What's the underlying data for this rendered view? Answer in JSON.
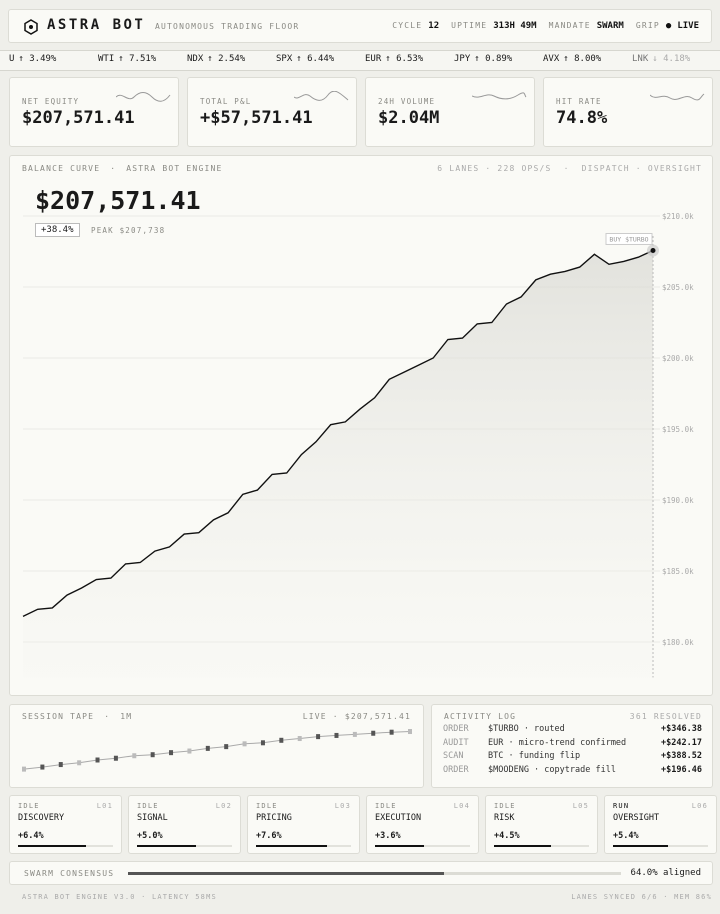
{
  "header": {
    "brand": "ASTRA BOT",
    "tagline": "AUTONOMOUS TRADING FLOOR",
    "cycle_label": "CYCLE",
    "cycle": "12",
    "uptime_label": "UPTIME",
    "uptime": "313H 49M",
    "mandate_label": "MANDATE",
    "mandate": "SWARM",
    "grip_label": "GRIP",
    "grip": "LIVE"
  },
  "ticker": [
    {
      "symbol": "U",
      "move": "↑ 3.49%"
    },
    {
      "symbol": "WTI",
      "move": "↑ 7.51%"
    },
    {
      "symbol": "NDX",
      "move": "↑ 2.54%"
    },
    {
      "symbol": "SPX",
      "move": "↑ 6.44%"
    },
    {
      "symbol": "EUR",
      "move": "↑ 6.53%"
    },
    {
      "symbol": "JPY",
      "move": "↑ 0.89%"
    },
    {
      "symbol": "AVX",
      "move": "↑ 8.00%"
    },
    {
      "symbol": "LNK",
      "move": "↓ 4.18%"
    }
  ],
  "stats": [
    {
      "label": "NET EQUITY",
      "value": "$207,571.41"
    },
    {
      "label": "TOTAL P&L",
      "value": "+$57,571.41"
    },
    {
      "label": "24H VOLUME",
      "value": "$2.04M"
    },
    {
      "label": "HIT RATE",
      "value": "74.8%"
    }
  ],
  "balance_curve": {
    "title": "BALANCE CURVE",
    "separator": "·",
    "source": "ASTRA BOT ENGINE",
    "meta": "6 LANES · 228 OPS/S  ·  DISPATCH · OVERSIGHT",
    "headline": "$207,571.41",
    "change": "+38.4%",
    "peak": "PEAK $207,738",
    "annotation": "BUY $TURBO",
    "values": [
      181800,
      182300,
      182400,
      183300,
      183800,
      184400,
      184500,
      185500,
      185600,
      186400,
      186700,
      187600,
      187700,
      188600,
      189100,
      190400,
      190700,
      191800,
      191900,
      193200,
      194100,
      195300,
      195500,
      196400,
      197200,
      198500,
      199000,
      199500,
      200000,
      201300,
      201400,
      202400,
      202500,
      203800,
      204300,
      205500,
      205900,
      206100,
      206400,
      207300,
      206600,
      206800,
      207100,
      207571
    ],
    "ylim": [
      177500,
      211000
    ],
    "yticks": [
      {
        "value": 180000,
        "label": "$180.0k"
      },
      {
        "value": 185000,
        "label": "$185.0k"
      },
      {
        "value": 190000,
        "label": "$190.0k"
      },
      {
        "value": 195000,
        "label": "$195.0k"
      },
      {
        "value": 200000,
        "label": "$200.0k"
      },
      {
        "value": 205000,
        "label": "$205.0k"
      },
      {
        "value": 210000,
        "label": "$210.0k"
      }
    ]
  },
  "session_tape": {
    "title": "SESSION TAPE",
    "separator": "·",
    "window": "1M",
    "status": "LIVE · $207,571.41",
    "values": [
      182000,
      183400,
      185100,
      186300,
      188200,
      189400,
      191100,
      191800,
      193200,
      194300,
      196100,
      197300,
      199200,
      199900,
      201600,
      202800,
      204100,
      204900,
      205600,
      206400,
      207100,
      207571
    ],
    "ylim": [
      178000,
      212000
    ]
  },
  "activity_log": {
    "title": "ACTIVITY LOG",
    "count": "361 RESOLVED",
    "rows": [
      {
        "kind": "ORDER",
        "text": "$TURBO · routed",
        "amount": "+$346.38"
      },
      {
        "kind": "AUDIT",
        "text": "EUR · micro-trend confirmed",
        "amount": "+$242.17"
      },
      {
        "kind": "SCAN",
        "text": "BTC · funding flip",
        "amount": "+$388.52"
      },
      {
        "kind": "ORDER",
        "text": "$MOODENG · copytrade fill",
        "amount": "+$196.46"
      }
    ]
  },
  "lanes": [
    {
      "status": "IDLE",
      "id": "L01",
      "name": "DISCOVERY",
      "change": "+6.4%",
      "progress": 72
    },
    {
      "status": "IDLE",
      "id": "L02",
      "name": "SIGNAL",
      "change": "+5.0%",
      "progress": 62
    },
    {
      "status": "IDLE",
      "id": "L03",
      "name": "PRICING",
      "change": "+7.6%",
      "progress": 75
    },
    {
      "status": "IDLE",
      "id": "L04",
      "name": "EXECUTION",
      "change": "+3.6%",
      "progress": 52
    },
    {
      "status": "IDLE",
      "id": "L05",
      "name": "RISK",
      "change": "+4.5%",
      "progress": 60
    },
    {
      "status": "RUN",
      "id": "L06",
      "name": "OVERSIGHT",
      "change": "+5.4%",
      "progress": 58
    }
  ],
  "consensus": {
    "label": "SWARM CONSENSUS",
    "value": 64,
    "text": "64.0% aligned"
  },
  "footer": {
    "left": "ASTRA BOT ENGINE V3.0 · LATENCY 58MS",
    "right": "LANES SYNCED 6/6 · MEM 86%"
  }
}
